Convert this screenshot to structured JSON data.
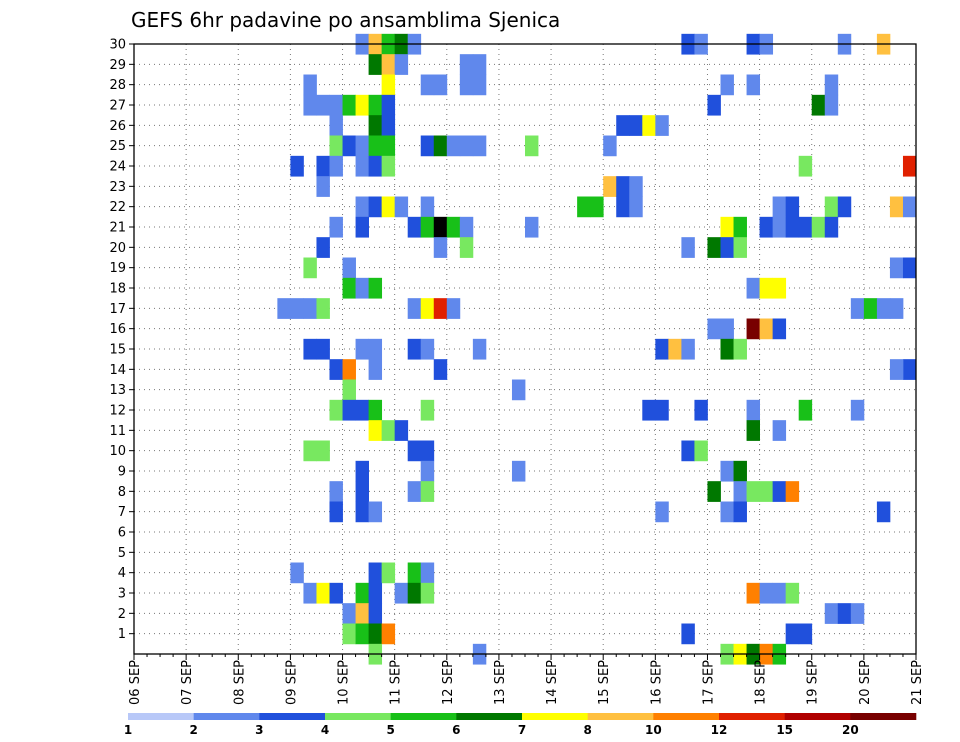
{
  "chart_data": {
    "type": "heatmap",
    "title": "GEFS 6hr padavine po ansamblima Sjenica",
    "xlabel": "",
    "ylabel": "",
    "x_ticks": [
      "06 SEP",
      "07 SEP",
      "08 SEP",
      "09 SEP",
      "10 SEP",
      "11 SEP",
      "12 SEP",
      "13 SEP",
      "14 SEP",
      "15 SEP",
      "16 SEP",
      "17 SEP",
      "18 SEP",
      "19 SEP",
      "20 SEP",
      "21 SEP"
    ],
    "y_ticks": [
      1,
      2,
      3,
      4,
      5,
      6,
      7,
      8,
      9,
      10,
      11,
      12,
      13,
      14,
      15,
      16,
      17,
      18,
      19,
      20,
      21,
      22,
      23,
      24,
      25,
      26,
      27,
      28,
      29,
      30
    ],
    "grid": true,
    "xlim": [
      0,
      60
    ],
    "ylim": [
      0,
      30
    ],
    "colorbar": {
      "labels": [
        "1",
        "2",
        "3",
        "4",
        "5",
        "6",
        "7",
        "8",
        "10",
        "12",
        "15",
        "20"
      ],
      "colors": [
        "#b8c8f8",
        "#6088ec",
        "#2050dc",
        "#78e860",
        "#18c018",
        "#007800",
        "#ffff00",
        "#ffc040",
        "#ff8000",
        "#e02000",
        "#b00000",
        "#780000"
      ]
    },
    "cells": [
      [
        17,
        30,
        1
      ],
      [
        18,
        30,
        7
      ],
      [
        19,
        30,
        4
      ],
      [
        20,
        30,
        5
      ],
      [
        21,
        30,
        1
      ],
      [
        42,
        30,
        2
      ],
      [
        43,
        30,
        1
      ],
      [
        47,
        30,
        2
      ],
      [
        48,
        30,
        1
      ],
      [
        54,
        30,
        1
      ],
      [
        57,
        30,
        7
      ],
      [
        18,
        29,
        5
      ],
      [
        19,
        29,
        7
      ],
      [
        20,
        29,
        1
      ],
      [
        25,
        29,
        1
      ],
      [
        26,
        29,
        1
      ],
      [
        13,
        28,
        1
      ],
      [
        19,
        28,
        6
      ],
      [
        22,
        28,
        1
      ],
      [
        23,
        28,
        1
      ],
      [
        25,
        28,
        1
      ],
      [
        26,
        28,
        1
      ],
      [
        45,
        28,
        1
      ],
      [
        47,
        28,
        1
      ],
      [
        53,
        28,
        1
      ],
      [
        13,
        27,
        1
      ],
      [
        14,
        27,
        1
      ],
      [
        15,
        27,
        1
      ],
      [
        16,
        27,
        4
      ],
      [
        17,
        27,
        6
      ],
      [
        18,
        27,
        4
      ],
      [
        19,
        27,
        2
      ],
      [
        44,
        27,
        2
      ],
      [
        52,
        27,
        5
      ],
      [
        53,
        27,
        1
      ],
      [
        15,
        26,
        1
      ],
      [
        18,
        26,
        5
      ],
      [
        19,
        26,
        2
      ],
      [
        37,
        26,
        2
      ],
      [
        38,
        26,
        2
      ],
      [
        39,
        26,
        6
      ],
      [
        40,
        26,
        1
      ],
      [
        15,
        25,
        3
      ],
      [
        16,
        25,
        2
      ],
      [
        17,
        25,
        1
      ],
      [
        18,
        25,
        4
      ],
      [
        19,
        25,
        4
      ],
      [
        22,
        25,
        2
      ],
      [
        23,
        25,
        5
      ],
      [
        24,
        25,
        1
      ],
      [
        25,
        25,
        1
      ],
      [
        26,
        25,
        1
      ],
      [
        30,
        25,
        3
      ],
      [
        36,
        25,
        1
      ],
      [
        12,
        24,
        2
      ],
      [
        14,
        24,
        2
      ],
      [
        15,
        24,
        1
      ],
      [
        17,
        24,
        1
      ],
      [
        18,
        24,
        2
      ],
      [
        19,
        24,
        3
      ],
      [
        51,
        24,
        3
      ],
      [
        59,
        24,
        9
      ],
      [
        14,
        23,
        1
      ],
      [
        36,
        23,
        7
      ],
      [
        37,
        23,
        2
      ],
      [
        38,
        23,
        1
      ],
      [
        17,
        22,
        1
      ],
      [
        18,
        22,
        2
      ],
      [
        19,
        22,
        6
      ],
      [
        20,
        22,
        1
      ],
      [
        22,
        22,
        1
      ],
      [
        34,
        22,
        4
      ],
      [
        35,
        22,
        4
      ],
      [
        37,
        22,
        2
      ],
      [
        38,
        22,
        1
      ],
      [
        49,
        22,
        1
      ],
      [
        50,
        22,
        2
      ],
      [
        53,
        22,
        3
      ],
      [
        54,
        22,
        2
      ],
      [
        58,
        22,
        7
      ],
      [
        59,
        22,
        1
      ],
      [
        15,
        21,
        1
      ],
      [
        17,
        21,
        2
      ],
      [
        21,
        21,
        2
      ],
      [
        22,
        21,
        4
      ],
      [
        23,
        21,
        12
      ],
      [
        24,
        21,
        4
      ],
      [
        25,
        21,
        1
      ],
      [
        30,
        21,
        1
      ],
      [
        45,
        21,
        6
      ],
      [
        46,
        21,
        4
      ],
      [
        48,
        21,
        2
      ],
      [
        49,
        21,
        1
      ],
      [
        50,
        21,
        2
      ],
      [
        51,
        21,
        2
      ],
      [
        52,
        21,
        3
      ],
      [
        53,
        21,
        2
      ],
      [
        14,
        20,
        2
      ],
      [
        23,
        20,
        1
      ],
      [
        25,
        20,
        3
      ],
      [
        42,
        20,
        1
      ],
      [
        44,
        20,
        5
      ],
      [
        45,
        20,
        2
      ],
      [
        46,
        20,
        3
      ],
      [
        13,
        19,
        3
      ],
      [
        16,
        19,
        1
      ],
      [
        58,
        19,
        1
      ],
      [
        59,
        19,
        2
      ],
      [
        16,
        18,
        4
      ],
      [
        17,
        18,
        1
      ],
      [
        18,
        18,
        4
      ],
      [
        47,
        18,
        1
      ],
      [
        48,
        18,
        6
      ],
      [
        49,
        18,
        6
      ],
      [
        11,
        17,
        1
      ],
      [
        12,
        17,
        1
      ],
      [
        13,
        17,
        1
      ],
      [
        14,
        17,
        3
      ],
      [
        21,
        17,
        1
      ],
      [
        22,
        17,
        6
      ],
      [
        23,
        17,
        9
      ],
      [
        24,
        17,
        1
      ],
      [
        55,
        17,
        1
      ],
      [
        56,
        17,
        4
      ],
      [
        57,
        17,
        1
      ],
      [
        58,
        17,
        1
      ],
      [
        44,
        16,
        1
      ],
      [
        45,
        16,
        1
      ],
      [
        47,
        16,
        11
      ],
      [
        48,
        16,
        7
      ],
      [
        49,
        16,
        2
      ],
      [
        13,
        15,
        2
      ],
      [
        14,
        15,
        2
      ],
      [
        17,
        15,
        1
      ],
      [
        18,
        15,
        1
      ],
      [
        21,
        15,
        2
      ],
      [
        22,
        15,
        1
      ],
      [
        26,
        15,
        1
      ],
      [
        40,
        15,
        2
      ],
      [
        41,
        15,
        7
      ],
      [
        42,
        15,
        1
      ],
      [
        45,
        15,
        5
      ],
      [
        46,
        15,
        3
      ],
      [
        15,
        14,
        2
      ],
      [
        16,
        14,
        8
      ],
      [
        18,
        14,
        1
      ],
      [
        23,
        14,
        2
      ],
      [
        59,
        14,
        2
      ],
      [
        58,
        14,
        1
      ],
      [
        16,
        13,
        3
      ],
      [
        29,
        13,
        1
      ],
      [
        15,
        12,
        3
      ],
      [
        16,
        12,
        2
      ],
      [
        17,
        12,
        2
      ],
      [
        18,
        12,
        4
      ],
      [
        22,
        12,
        3
      ],
      [
        39,
        12,
        2
      ],
      [
        40,
        12,
        2
      ],
      [
        43,
        12,
        2
      ],
      [
        47,
        12,
        1
      ],
      [
        51,
        12,
        4
      ],
      [
        55,
        12,
        1
      ],
      [
        18,
        11,
        6
      ],
      [
        19,
        11,
        3
      ],
      [
        20,
        11,
        2
      ],
      [
        47,
        11,
        5
      ],
      [
        49,
        11,
        1
      ],
      [
        13,
        10,
        3
      ],
      [
        14,
        10,
        3
      ],
      [
        21,
        10,
        2
      ],
      [
        22,
        10,
        2
      ],
      [
        42,
        10,
        2
      ],
      [
        43,
        10,
        3
      ],
      [
        17,
        9,
        2
      ],
      [
        22,
        9,
        1
      ],
      [
        29,
        9,
        1
      ],
      [
        45,
        9,
        1
      ],
      [
        46,
        9,
        5
      ],
      [
        15,
        8,
        1
      ],
      [
        17,
        8,
        2
      ],
      [
        21,
        8,
        1
      ],
      [
        22,
        8,
        3
      ],
      [
        44,
        8,
        5
      ],
      [
        46,
        8,
        1
      ],
      [
        47,
        8,
        3
      ],
      [
        48,
        8,
        3
      ],
      [
        49,
        8,
        2
      ],
      [
        50,
        8,
        8
      ],
      [
        15,
        7,
        2
      ],
      [
        17,
        7,
        2
      ],
      [
        18,
        7,
        1
      ],
      [
        40,
        7,
        1
      ],
      [
        45,
        7,
        1
      ],
      [
        46,
        7,
        2
      ],
      [
        57,
        7,
        2
      ],
      [
        12,
        4,
        1
      ],
      [
        18,
        4,
        2
      ],
      [
        19,
        4,
        3
      ],
      [
        21,
        4,
        4
      ],
      [
        22,
        4,
        1
      ],
      [
        13,
        3,
        1
      ],
      [
        14,
        3,
        6
      ],
      [
        15,
        3,
        2
      ],
      [
        17,
        3,
        4
      ],
      [
        18,
        3,
        2
      ],
      [
        20,
        3,
        1
      ],
      [
        21,
        3,
        5
      ],
      [
        22,
        3,
        3
      ],
      [
        47,
        3,
        8
      ],
      [
        48,
        3,
        1
      ],
      [
        49,
        3,
        1
      ],
      [
        50,
        3,
        3
      ],
      [
        16,
        2,
        1
      ],
      [
        17,
        2,
        7
      ],
      [
        18,
        2,
        2
      ],
      [
        53,
        2,
        1
      ],
      [
        54,
        2,
        2
      ],
      [
        55,
        2,
        1
      ],
      [
        16,
        1,
        3
      ],
      [
        17,
        1,
        4
      ],
      [
        18,
        1,
        5
      ],
      [
        19,
        1,
        8
      ],
      [
        42,
        1,
        2
      ],
      [
        50,
        1,
        2
      ],
      [
        51,
        1,
        2
      ],
      [
        18,
        0,
        3
      ],
      [
        26,
        0,
        1
      ],
      [
        45,
        0,
        3
      ],
      [
        46,
        0,
        6
      ],
      [
        47,
        0,
        5
      ],
      [
        48,
        0,
        8
      ],
      [
        49,
        0,
        4
      ]
    ]
  }
}
